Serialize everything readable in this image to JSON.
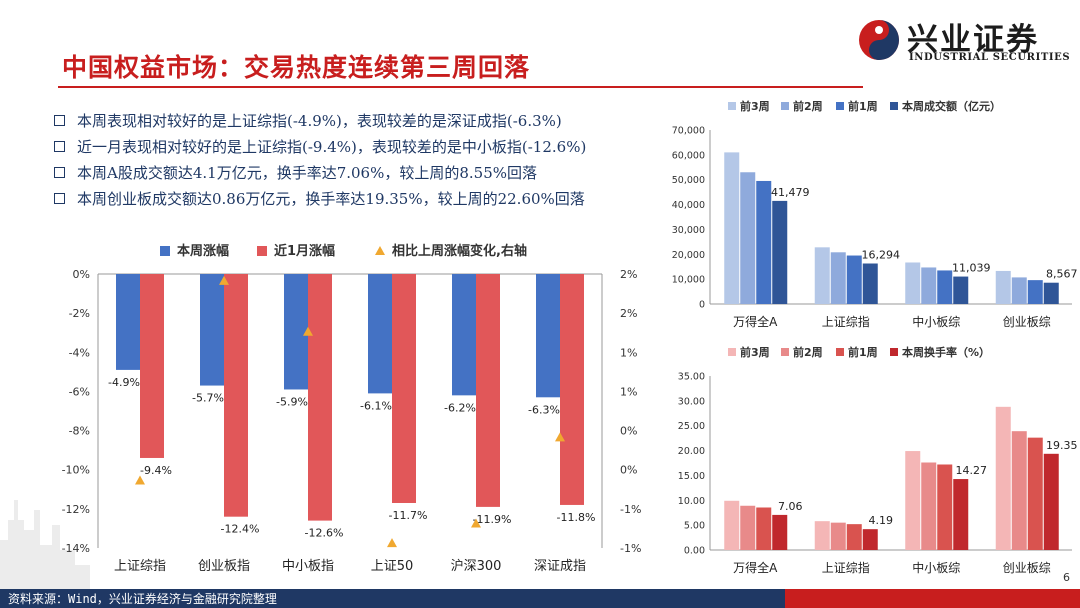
{
  "page": {
    "title": "中国权益市场：交易热度连续第三周回落",
    "logo_cn": "兴业证券",
    "logo_en": "INDUSTRIAL SECURITIES",
    "footer": "资料来源：Wind，兴业证券经济与金融研究院整理",
    "page_number": "6"
  },
  "bullets": [
    "本周表现相对较好的是上证综指(-4.9%)，表现较差的是深证成指(-6.3%)",
    "近一月表现相对较好的是上证综指(-9.4%)，表现较差的是中小板指(-12.6%)",
    "本周A股成交额达4.1万亿元，换手率达7.06%，较上周的8.55%回落",
    "本周创业板成交额达0.86万亿元，换手率达19.35%，较上周的22.60%回落"
  ],
  "colors": {
    "title_red": "#c81e1e",
    "navy": "#1f3864",
    "blue_main": "#4472c4",
    "red_main": "#e15759",
    "triangle": "#f0a830"
  },
  "chart_data": [
    {
      "id": "index_returns",
      "type": "bar",
      "categories": [
        "上证综指",
        "创业板指",
        "中小板指",
        "上证50",
        "沪深300",
        "深证成指"
      ],
      "series": [
        {
          "name": "本周涨幅",
          "axis": "left",
          "values": [
            -4.9,
            -5.7,
            -5.9,
            -6.1,
            -6.2,
            -6.3
          ],
          "labels": [
            "-4.9%",
            "-5.7%",
            "-5.9%",
            "-6.1%",
            "-6.2%",
            "-6.3%"
          ],
          "color": "#4472c4"
        },
        {
          "name": "近1月涨幅",
          "axis": "left",
          "values": [
            -9.4,
            -12.4,
            -12.6,
            -11.7,
            -11.9,
            -11.8
          ],
          "labels": [
            "-9.4%",
            "-12.4%",
            "-12.6%",
            "-11.7%",
            "-11.9%",
            "-11.8%"
          ],
          "color": "#e15759"
        },
        {
          "name": "相比上周涨幅变化,右轴",
          "axis": "right",
          "marker": "triangle",
          "values": [
            -0.15,
            2.4,
            1.75,
            -0.95,
            -0.7,
            0.4
          ],
          "color": "#f0a830"
        }
      ],
      "ylim": [
        -14,
        0
      ],
      "yticks": [
        0,
        -2,
        -4,
        -6,
        -8,
        -10,
        -12,
        -14
      ],
      "ytick_labels": [
        "0%",
        "-2%",
        "-4%",
        "-6%",
        "-8%",
        "-10%",
        "-12%",
        "-14%"
      ],
      "y2lim": [
        -1,
        2.5
      ],
      "y2ticks": [
        2.5,
        2,
        1.5,
        1,
        0.5,
        0,
        -0.5,
        -1
      ],
      "y2tick_labels": [
        "2%",
        "2%",
        "1%",
        "1%",
        "0%",
        "0%",
        "-1%",
        "-1%"
      ],
      "legend": "top",
      "grid": false
    },
    {
      "id": "turnover_value",
      "type": "bar",
      "categories": [
        "万得全A",
        "上证综指",
        "中小板综",
        "创业板综"
      ],
      "series": [
        {
          "name": "前3周",
          "values": [
            61000,
            22800,
            16700,
            13300
          ],
          "color": "#b4c7e7"
        },
        {
          "name": "前2周",
          "values": [
            53000,
            20800,
            14700,
            10700
          ],
          "color": "#8faadc"
        },
        {
          "name": "前1周",
          "values": [
            49500,
            19500,
            13500,
            9600
          ],
          "color": "#4472c4"
        },
        {
          "name": "本周成交额（亿元）",
          "values": [
            41479,
            16294,
            11039,
            8567
          ],
          "labels": [
            "41,479",
            "16,294",
            "11,039",
            "8,567"
          ],
          "color": "#2f5597"
        }
      ],
      "ylim": [
        0,
        70000
      ],
      "yticks": [
        0,
        10000,
        20000,
        30000,
        40000,
        50000,
        60000,
        70000
      ],
      "ytick_labels": [
        "0",
        "10,000",
        "20,000",
        "30,000",
        "40,000",
        "50,000",
        "60,000",
        "70,000"
      ],
      "legend": "top",
      "grid": false
    },
    {
      "id": "turnover_rate",
      "type": "bar",
      "categories": [
        "万得全A",
        "上证综指",
        "中小板综",
        "创业板综"
      ],
      "series": [
        {
          "name": "前3周",
          "values": [
            9.9,
            5.8,
            19.9,
            28.8
          ],
          "color": "#f4b6b6"
        },
        {
          "name": "前2周",
          "values": [
            8.9,
            5.5,
            17.6,
            23.9
          ],
          "color": "#e88a8a"
        },
        {
          "name": "前1周",
          "values": [
            8.55,
            5.2,
            17.2,
            22.6
          ],
          "color": "#d9534f"
        },
        {
          "name": "本周换手率（%）",
          "values": [
            7.06,
            4.19,
            14.27,
            19.35
          ],
          "labels": [
            "7.06",
            "4.19",
            "14.27",
            "19.35"
          ],
          "color": "#c0282d"
        }
      ],
      "ylim": [
        0,
        35
      ],
      "yticks": [
        0,
        5,
        10,
        15,
        20,
        25,
        30,
        35
      ],
      "ytick_labels": [
        "0.00",
        "5.00",
        "10.00",
        "15.00",
        "20.00",
        "25.00",
        "30.00",
        "35.00"
      ],
      "legend": "top",
      "grid": false
    }
  ]
}
